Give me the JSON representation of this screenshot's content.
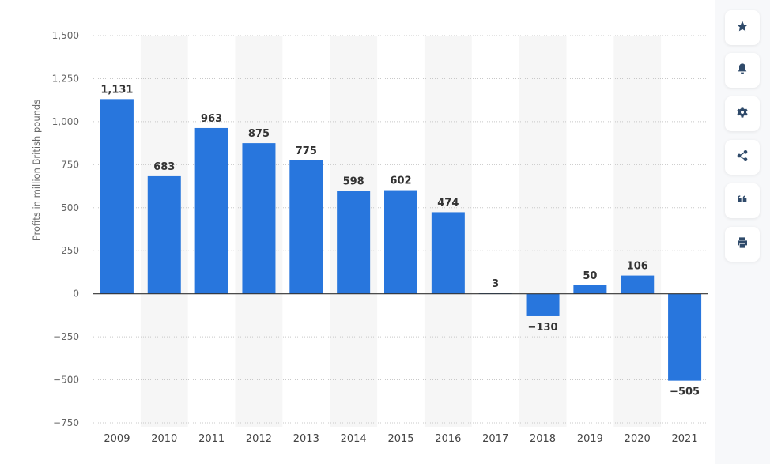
{
  "chart_data": {
    "type": "bar",
    "title": "",
    "xlabel": "",
    "ylabel": "Profits in million British pounds",
    "ylim": [
      -750,
      1500
    ],
    "yticks": [
      1500,
      1250,
      1000,
      750,
      500,
      250,
      0,
      -250,
      -500,
      -750
    ],
    "ytick_labels": [
      "1,500",
      "1,250",
      "1,000",
      "750",
      "500",
      "250",
      "0",
      "−250",
      "−500",
      "−750"
    ],
    "categories": [
      "2009",
      "2010",
      "2011",
      "2012",
      "2013",
      "2014",
      "2015",
      "2016",
      "2017",
      "2018",
      "2019",
      "2020",
      "2021"
    ],
    "values": [
      1131,
      683,
      963,
      875,
      775,
      598,
      602,
      474,
      3,
      -130,
      50,
      106,
      -505
    ],
    "value_labels": [
      "1,131",
      "683",
      "963",
      "875",
      "775",
      "598",
      "602",
      "474",
      "3",
      "−130",
      "50",
      "106",
      "−505"
    ],
    "grid": true,
    "bar_color": "#2876dd"
  },
  "toolbar": {
    "icons": [
      "star-icon",
      "bell-icon",
      "gear-icon",
      "share-icon",
      "quote-icon",
      "print-icon"
    ]
  }
}
